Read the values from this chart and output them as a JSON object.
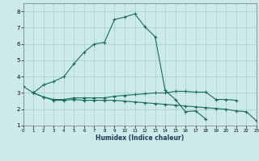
{
  "xlabel": "Humidex (Indice chaleur)",
  "bg_color": "#cceaea",
  "grid_color": "#aacccc",
  "line_color": "#1a6b5a",
  "line1_x": [
    0,
    1,
    2,
    3,
    4,
    5,
    6,
    7,
    8,
    9,
    10,
    11,
    12,
    13,
    14,
    15,
    16,
    17,
    18,
    19
  ],
  "line1_y": [
    3.4,
    3.0,
    3.5,
    3.7,
    4.0,
    4.8,
    5.5,
    6.0,
    6.1,
    7.5,
    7.65,
    7.85,
    7.05,
    6.45,
    3.15,
    2.6,
    1.85,
    1.9,
    1.4,
    null
  ],
  "line2_x": [
    1,
    2,
    3,
    4,
    5,
    6,
    7,
    8,
    9,
    10,
    11,
    12,
    13,
    14,
    15,
    16,
    17,
    18,
    19,
    20,
    21
  ],
  "line2_y": [
    3.0,
    2.75,
    2.6,
    2.6,
    2.7,
    2.7,
    2.7,
    2.7,
    2.8,
    2.85,
    2.9,
    2.95,
    3.0,
    3.0,
    3.1,
    3.1,
    3.05,
    3.05,
    2.6,
    2.6,
    2.55
  ],
  "line3_x": [
    1,
    2,
    3,
    4,
    5,
    6,
    7,
    8,
    9,
    10,
    11,
    12,
    13,
    14,
    15,
    16,
    17,
    18,
    19,
    20,
    21,
    22,
    23
  ],
  "line3_y": [
    3.0,
    2.75,
    2.55,
    2.55,
    2.6,
    2.55,
    2.55,
    2.55,
    2.55,
    2.5,
    2.45,
    2.4,
    2.35,
    2.3,
    2.25,
    2.2,
    2.15,
    2.1,
    2.05,
    2.0,
    1.9,
    1.85,
    1.3
  ],
  "xlim": [
    0,
    23
  ],
  "ylim": [
    1,
    8.5
  ],
  "yticks": [
    1,
    2,
    3,
    4,
    5,
    6,
    7,
    8
  ],
  "xticks": [
    0,
    1,
    2,
    3,
    4,
    5,
    6,
    7,
    8,
    9,
    10,
    11,
    12,
    13,
    14,
    15,
    16,
    17,
    18,
    19,
    20,
    21,
    22,
    23
  ]
}
